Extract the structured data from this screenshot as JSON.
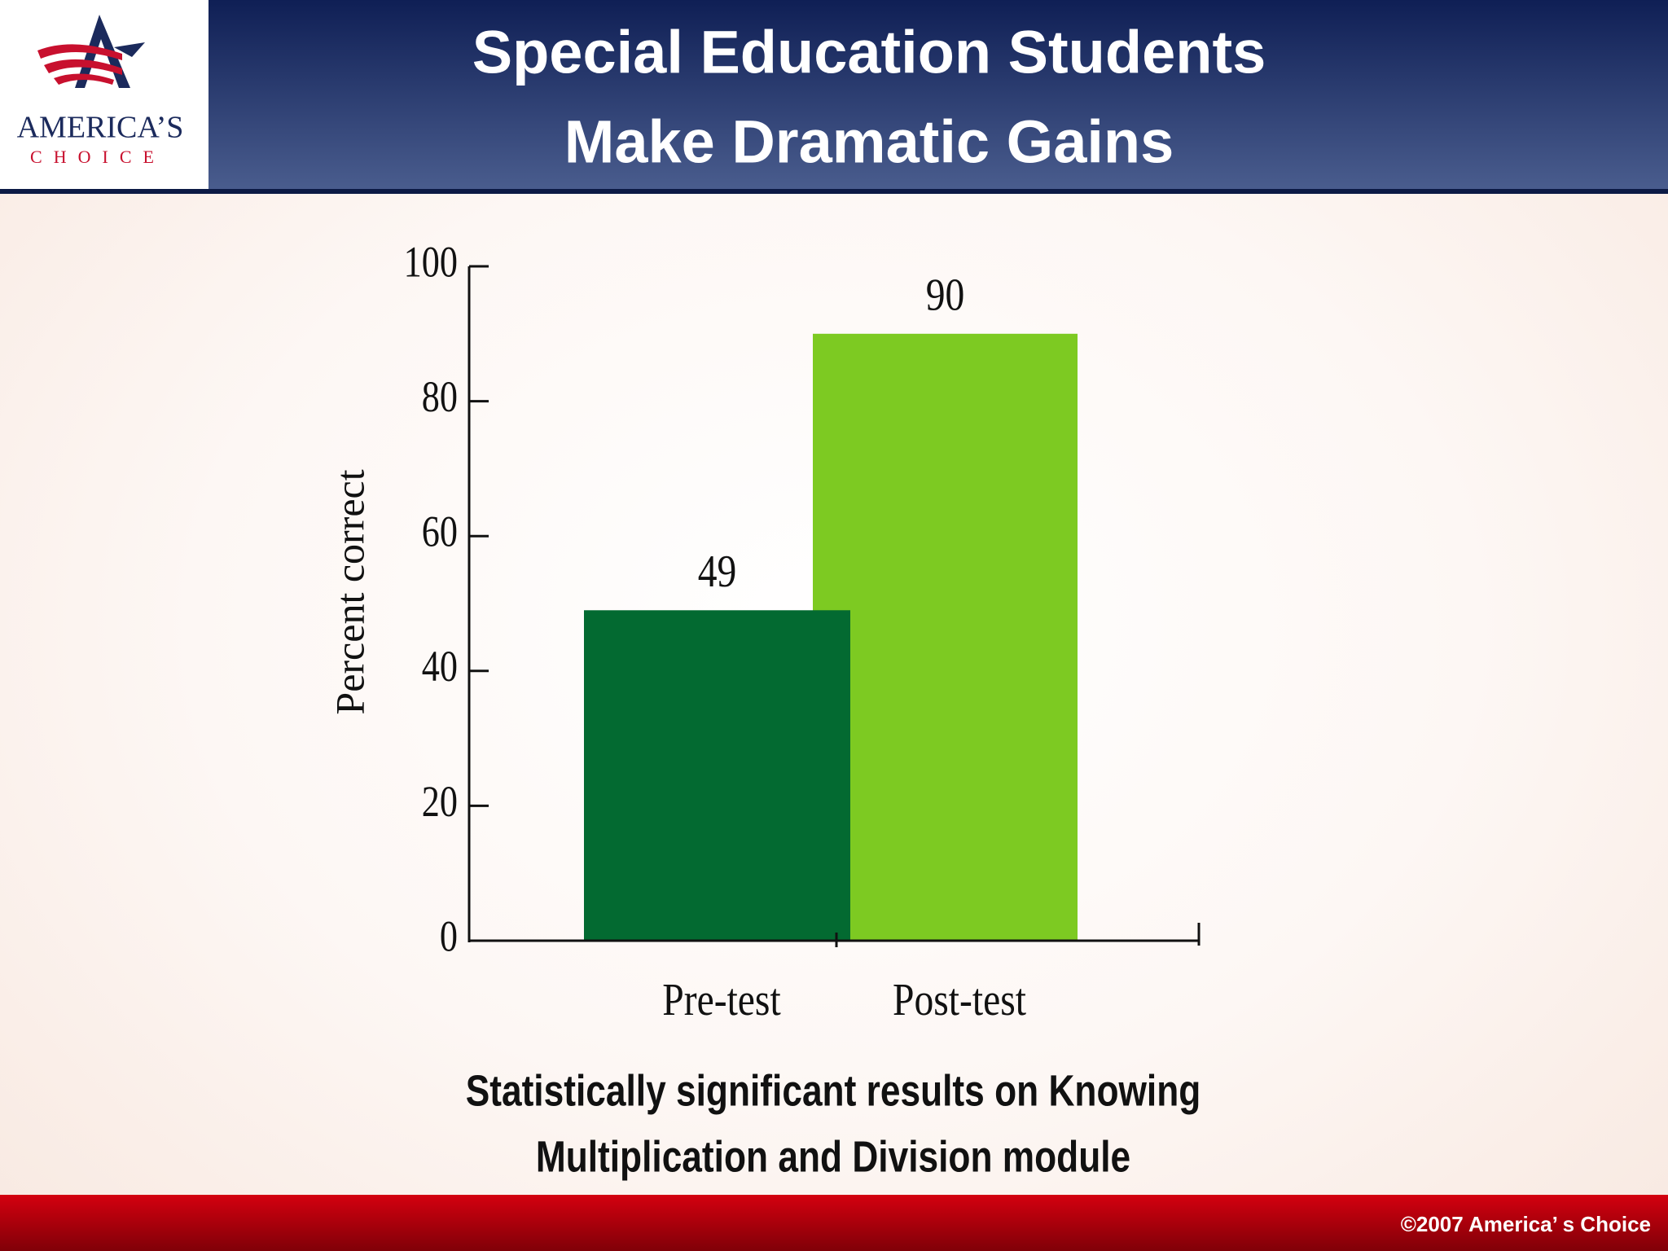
{
  "logo": {
    "name": "AMERICA’S",
    "sub": "CHOICE"
  },
  "footer": "©2007 America’ s Choice",
  "chart_data": {
    "type": "bar",
    "title": [
      "Special Education Students",
      "Make Dramatic Gains"
    ],
    "y_label": "Percent correct",
    "caption": [
      "Statistically significant results on Knowing",
      "Multiplication and Division module"
    ],
    "categories": [
      "Pre-test",
      "Post-test"
    ],
    "values": [
      49,
      90
    ],
    "colors": [
      "#036a31",
      "#7dca22"
    ],
    "ylim": [
      0,
      100
    ],
    "yticks": [
      0,
      20,
      40,
      60,
      80,
      100
    ]
  }
}
